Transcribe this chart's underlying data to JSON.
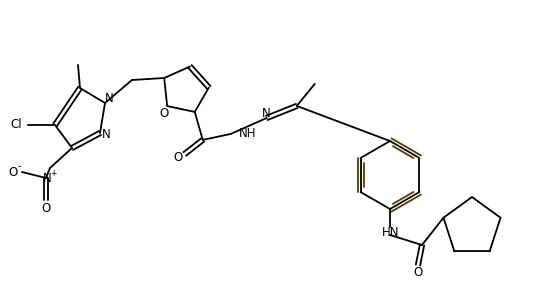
{
  "bg_color": "#ffffff",
  "line_color": "#000000",
  "figsize": [
    5.39,
    2.89
  ],
  "dpi": 100,
  "lw": 1.3,
  "bond_dark": "#5a3a00",
  "atoms": {
    "Cl": "Cl",
    "N": "N",
    "O": "O",
    "NH": "NH"
  }
}
